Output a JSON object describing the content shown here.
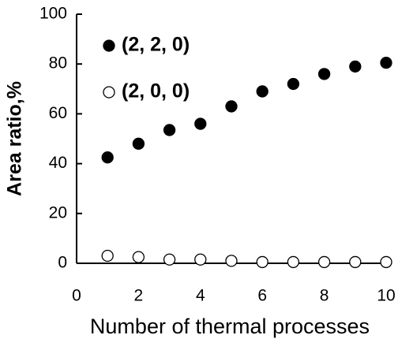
{
  "chart_data": {
    "type": "scatter",
    "xlabel": "Number of thermal processes",
    "ylabel": "Area ratio,%",
    "xlim": [
      0,
      10
    ],
    "ylim": [
      0,
      100
    ],
    "xticks": [
      0,
      2,
      4,
      6,
      8,
      10
    ],
    "yticks": [
      0,
      20,
      40,
      60,
      80,
      100
    ],
    "series": [
      {
        "name": "(2, 2, 0)",
        "color": "#000000",
        "filled": true,
        "x": [
          1,
          2,
          3,
          4,
          5,
          6,
          7,
          8,
          9,
          10
        ],
        "values": [
          42.5,
          48,
          53.5,
          56,
          63,
          69,
          72,
          76,
          79,
          80.5
        ]
      },
      {
        "name": "(2, 0, 0)",
        "color": "#000000",
        "filled": false,
        "x": [
          1,
          2,
          3,
          4,
          5,
          6,
          7,
          8,
          9,
          10
        ],
        "values": [
          3,
          2.5,
          1.5,
          1.5,
          1,
          0.5,
          0.5,
          0.5,
          0.5,
          0.5
        ]
      }
    ]
  }
}
